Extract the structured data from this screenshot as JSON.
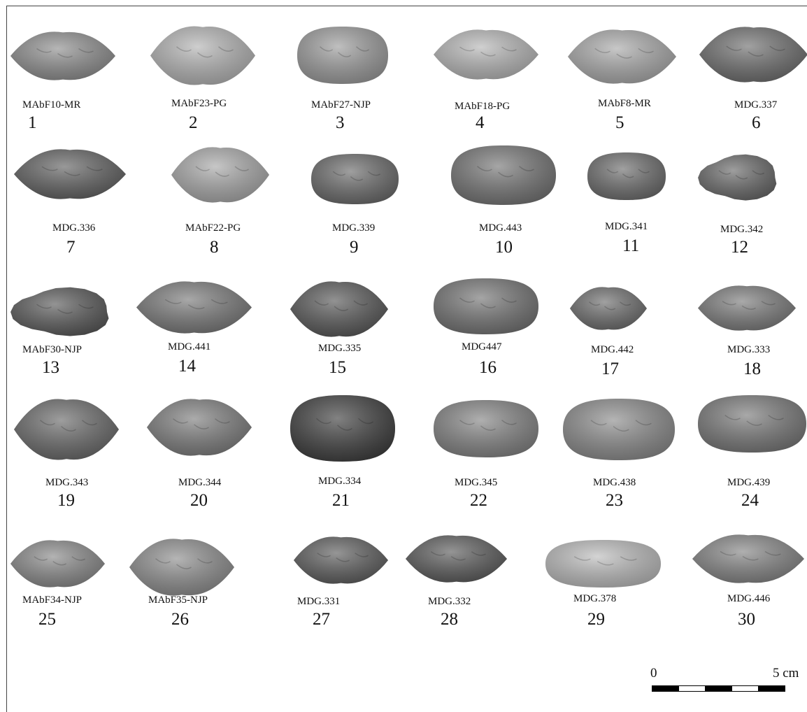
{
  "figure": {
    "specimens": [
      {
        "code": "MAbF10-MR",
        "number": "1",
        "shade": "#8f8f8f",
        "shape": "lens"
      },
      {
        "code": "MAbF23-PG",
        "number": "2",
        "shade": "#b4b4b4",
        "shape": "lens"
      },
      {
        "code": "MAbF27-NJP",
        "number": "3",
        "shade": "#9d9d9d",
        "shape": "oval"
      },
      {
        "code": "MAbF18-PG",
        "number": "4",
        "shade": "#b7b7b7",
        "shape": "lens"
      },
      {
        "code": "MAbF8-MR",
        "number": "5",
        "shade": "#aaaaaa",
        "shape": "lens"
      },
      {
        "code": "MDG.337",
        "number": "6",
        "shade": "#6f6f6f",
        "shape": "lens"
      },
      {
        "code": "MDG.336",
        "number": "7",
        "shade": "#626262",
        "shape": "lens"
      },
      {
        "code": "MAbF22-PG",
        "number": "8",
        "shade": "#a9a9a9",
        "shape": "lens"
      },
      {
        "code": "MDG.339",
        "number": "9",
        "shade": "#6c6c6c",
        "shape": "oval"
      },
      {
        "code": "MDG.443",
        "number": "10",
        "shade": "#767676",
        "shape": "oval"
      },
      {
        "code": "MDG.341",
        "number": "11",
        "shade": "#6e6e6e",
        "shape": "oval"
      },
      {
        "code": "MDG.342",
        "number": "12",
        "shade": "#6a6a6a",
        "shape": "rough"
      },
      {
        "code": "MAbF30-NJP",
        "number": "13",
        "shade": "#5a5a5a",
        "shape": "rough"
      },
      {
        "code": "MDG.441",
        "number": "14",
        "shade": "#7a7a7a",
        "shape": "lens"
      },
      {
        "code": "MDG.335",
        "number": "15",
        "shade": "#585858",
        "shape": "lens"
      },
      {
        "code": "MDG447",
        "number": "16",
        "shade": "#757575",
        "shape": "oval"
      },
      {
        "code": "MDG.442",
        "number": "17",
        "shade": "#6e6e6e",
        "shape": "lens"
      },
      {
        "code": "MDG.333",
        "number": "18",
        "shade": "#7c7c7c",
        "shape": "lens"
      },
      {
        "code": "MDG.343",
        "number": "19",
        "shade": "#6a6a6a",
        "shape": "lens"
      },
      {
        "code": "MDG.344",
        "number": "20",
        "shade": "#7e7e7e",
        "shape": "lens"
      },
      {
        "code": "MDG.334",
        "number": "21",
        "shade": "#3f3f3f",
        "shape": "oval"
      },
      {
        "code": "MDG.345",
        "number": "22",
        "shade": "#858585",
        "shape": "oval"
      },
      {
        "code": "MDG.438",
        "number": "23",
        "shade": "#8d8d8d",
        "shape": "oval"
      },
      {
        "code": "MDG.439",
        "number": "24",
        "shade": "#7a7a7a",
        "shape": "oval"
      },
      {
        "code": "MAbF34-NJP",
        "number": "25",
        "shade": "#8a8a8a",
        "shape": "lens"
      },
      {
        "code": "MAbF35-NJP",
        "number": "26",
        "shade": "#8e8e8e",
        "shape": "lens"
      },
      {
        "code": "MDG.331",
        "number": "27",
        "shade": "#5e5e5e",
        "shape": "lens"
      },
      {
        "code": "MDG.332",
        "number": "28",
        "shade": "#5c5c5c",
        "shape": "lens"
      },
      {
        "code": "MDG.378",
        "number": "29",
        "shade": "#bdbdbd",
        "shape": "oval"
      },
      {
        "code": "MDG.446",
        "number": "30",
        "shade": "#858585",
        "shape": "lens"
      }
    ]
  },
  "scale_bar": {
    "start_label": "0",
    "end_label": "5 cm"
  }
}
